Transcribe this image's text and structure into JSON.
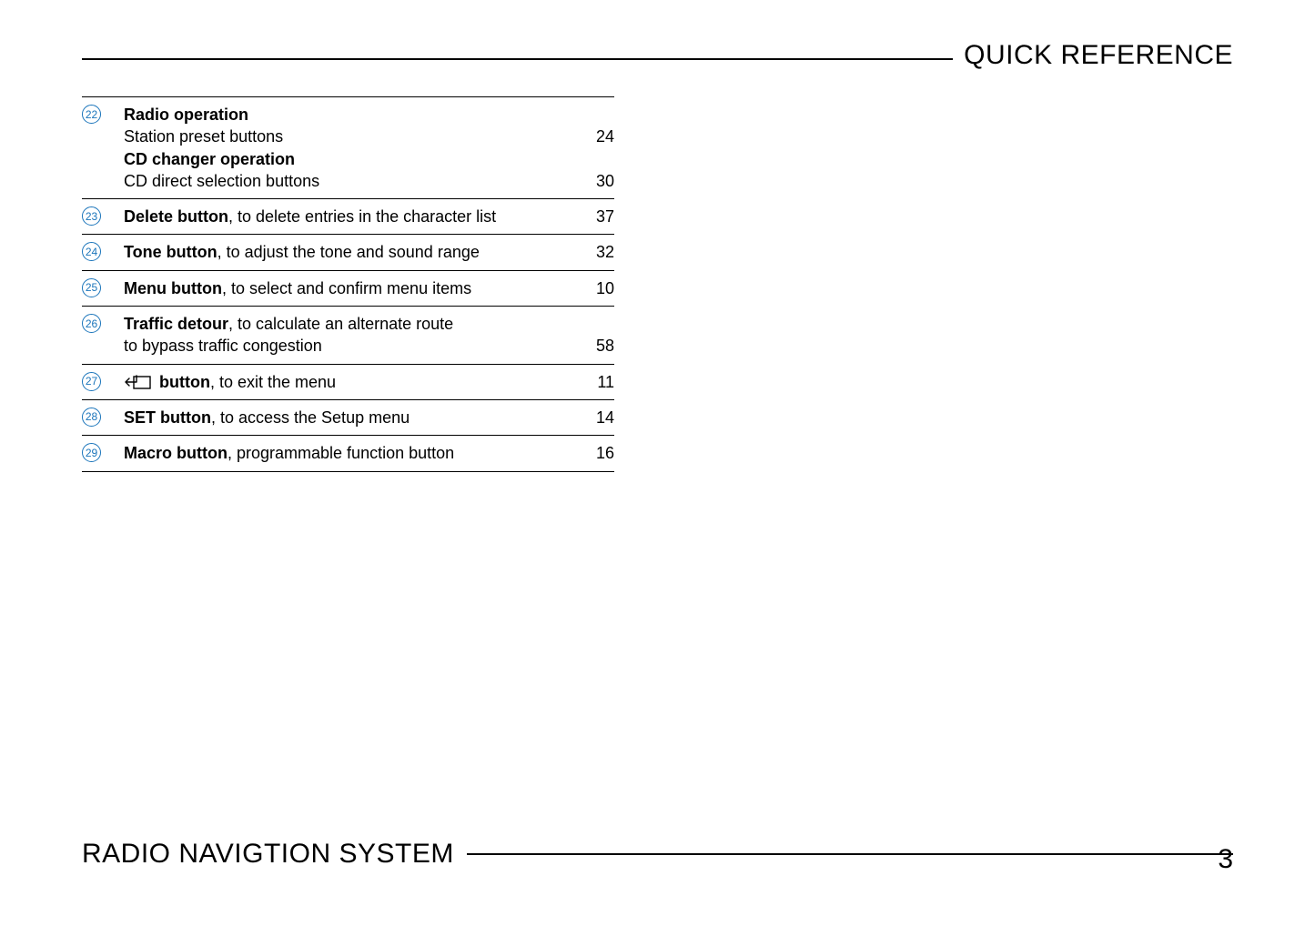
{
  "header": {
    "title": "QUICK REFERENCE"
  },
  "footer": {
    "title": "RADIO NAVIGTION SYSTEM",
    "page_number": "3"
  },
  "colors": {
    "accent": "#1b75bb",
    "text": "#000000",
    "background": "#ffffff"
  },
  "entries": [
    {
      "num": "22",
      "lines": [
        {
          "bold": "Radio operation",
          "plain": "",
          "page": ""
        },
        {
          "bold": "",
          "plain": "Station preset buttons",
          "page": "24"
        },
        {
          "bold": "CD changer operation",
          "plain": "",
          "page": ""
        },
        {
          "bold": "",
          "plain": "CD direct selection buttons",
          "page": "30"
        }
      ]
    },
    {
      "num": "23",
      "lines": [
        {
          "bold": "Delete button",
          "plain": ", to delete entries in the character list",
          "page": "37"
        }
      ]
    },
    {
      "num": "24",
      "lines": [
        {
          "bold": "Tone button",
          "plain": ", to adjust the tone and sound range",
          "page": "32"
        }
      ]
    },
    {
      "num": "25",
      "lines": [
        {
          "bold": "Menu button",
          "plain": ", to select and confirm menu items",
          "page": "10"
        }
      ]
    },
    {
      "num": "26",
      "lines": [
        {
          "bold": "Traffic detour",
          "plain": ", to calculate an alternate route",
          "page": ""
        },
        {
          "bold": "",
          "plain": "to bypass traffic congestion",
          "page": "58"
        }
      ]
    },
    {
      "num": "27",
      "icon": "exit",
      "lines": [
        {
          "bold": " button",
          "plain": ", to exit the menu",
          "page": "11"
        }
      ]
    },
    {
      "num": "28",
      "lines": [
        {
          "bold": "SET button",
          "plain": ", to access the Setup menu",
          "page": "14"
        }
      ]
    },
    {
      "num": "29",
      "lines": [
        {
          "bold": "Macro button",
          "plain": ", programmable function button",
          "page": "16"
        }
      ]
    }
  ]
}
